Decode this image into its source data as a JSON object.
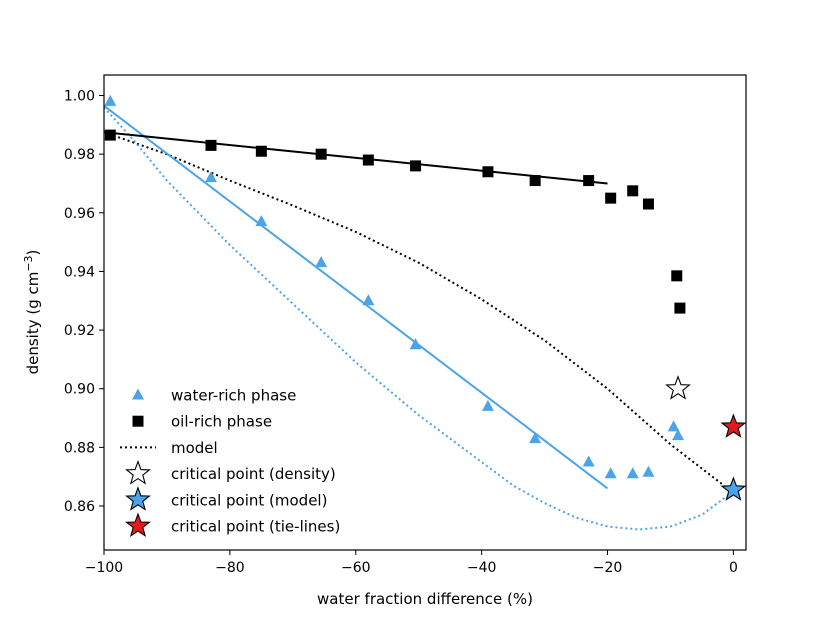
{
  "chart_data": {
    "type": "scatter",
    "title": "",
    "xlabel": "water fraction difference (%)",
    "ylabel": "density (g cm",
    "ylabel_exponent": "−3",
    "ylabel_suffix": ")",
    "xlim": [
      -100,
      2
    ],
    "ylim": [
      0.845,
      1.007
    ],
    "xticks": [
      -100,
      -80,
      -60,
      -40,
      -20,
      0
    ],
    "xtick_labels": [
      "−100",
      "−80",
      "−60",
      "−40",
      "−20",
      "0"
    ],
    "yticks": [
      0.86,
      0.88,
      0.9,
      0.92,
      0.94,
      0.96,
      0.98,
      1.0
    ],
    "ytick_labels": [
      "0.86",
      "0.88",
      "0.90",
      "0.92",
      "0.94",
      "0.96",
      "0.98",
      "1.00"
    ],
    "grid": false,
    "legend_position": "lower-left",
    "colors": {
      "water": "#4ba3ea",
      "oil": "#000000",
      "model": "#000000",
      "critical_model": "#4ba3ea",
      "critical_tie": "#e4191c",
      "critical_density": "#ffffff"
    },
    "series": [
      {
        "name": "water-rich phase",
        "kind": "triangle",
        "x": [
          -99,
          -83,
          -75,
          -65.5,
          -58,
          -50.5,
          -39,
          -31.5,
          -23,
          -19.5,
          -16,
          -13.5,
          -9.5,
          -8.8
        ],
        "y": [
          0.998,
          0.972,
          0.957,
          0.943,
          0.93,
          0.915,
          0.894,
          0.883,
          0.875,
          0.871,
          0.871,
          0.8715,
          0.887,
          0.884
        ]
      },
      {
        "name": "oil-rich phase",
        "kind": "square",
        "x": [
          -99,
          -83,
          -75,
          -65.5,
          -58,
          -50.5,
          -39,
          -31.5,
          -23,
          -19.5,
          -16,
          -13.5,
          -9,
          -8.5
        ],
        "y": [
          0.9865,
          0.983,
          0.981,
          0.98,
          0.978,
          0.976,
          0.974,
          0.971,
          0.971,
          0.965,
          0.9675,
          0.963,
          0.9385,
          0.9275
        ]
      },
      {
        "name": "model",
        "kind": "dotted-line",
        "x": [
          -100,
          -90,
          -80,
          -70,
          -60,
          -50,
          -40,
          -30,
          -20,
          -10,
          0
        ],
        "y": [
          0.9875,
          0.98,
          0.971,
          0.9625,
          0.9535,
          0.943,
          0.9305,
          0.9165,
          0.9,
          0.881,
          0.8645
        ]
      },
      {
        "name": "water model curve",
        "kind": "dotted-line-blue",
        "x": [
          -100,
          -95,
          -90,
          -85,
          -80,
          -75,
          -70,
          -65,
          -60,
          -55,
          -50,
          -45,
          -40,
          -35,
          -30,
          -25,
          -20,
          -15,
          -10,
          -5,
          0
        ],
        "y": [
          0.996,
          0.984,
          0.971,
          0.96,
          0.949,
          0.939,
          0.929,
          0.919,
          0.909,
          0.9,
          0.891,
          0.883,
          0.875,
          0.867,
          0.861,
          0.856,
          0.853,
          0.852,
          0.853,
          0.857,
          0.865
        ]
      },
      {
        "name": "water-rich fit",
        "kind": "solid-line-blue",
        "x": [
          -100,
          -20
        ],
        "y": [
          0.9965,
          0.866
        ]
      },
      {
        "name": "oil-rich fit",
        "kind": "solid-line-black",
        "x": [
          -100,
          -20
        ],
        "y": [
          0.9875,
          0.97
        ]
      },
      {
        "name": "critical point (density)",
        "kind": "star-white",
        "x": [
          -8.8
        ],
        "y": [
          0.9
        ]
      },
      {
        "name": "critical point (model)",
        "kind": "star-blue",
        "x": [
          0
        ],
        "y": [
          0.8655
        ]
      },
      {
        "name": "critical point (tie-lines)",
        "kind": "star-red",
        "x": [
          0
        ],
        "y": [
          0.887
        ]
      }
    ],
    "legend": [
      {
        "label": "water-rich phase",
        "marker": "triangle"
      },
      {
        "label": "oil-rich phase",
        "marker": "square"
      },
      {
        "label": "model",
        "marker": "dotted"
      },
      {
        "label": "critical point (density)",
        "marker": "star-white"
      },
      {
        "label": "critical point (model)",
        "marker": "star-blue"
      },
      {
        "label": "critical point (tie-lines)",
        "marker": "star-red"
      }
    ]
  }
}
